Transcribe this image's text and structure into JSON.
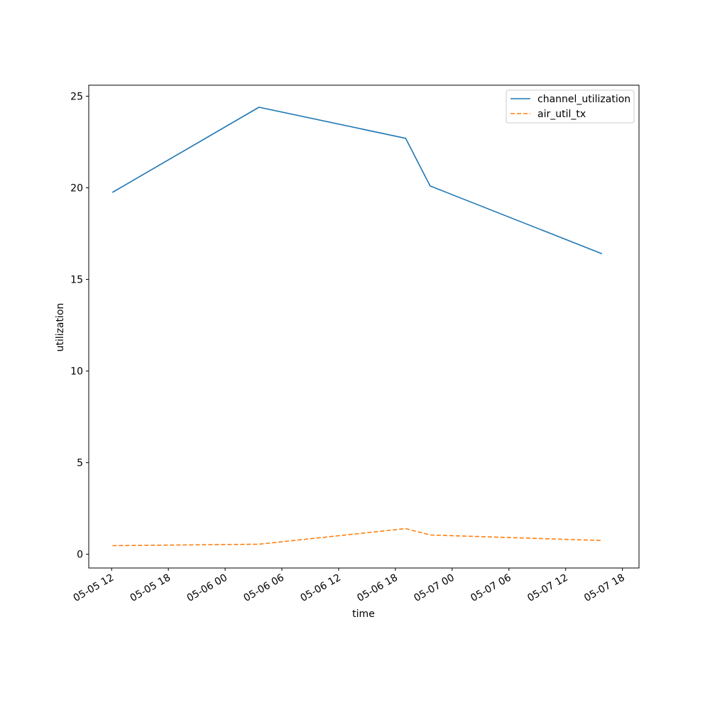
{
  "chart_data": {
    "type": "line",
    "title": "",
    "xlabel": "time",
    "ylabel": "utilization",
    "x_ticks": [
      "05-05 12",
      "05-05 18",
      "05-06 00",
      "05-06 06",
      "05-06 12",
      "05-06 18",
      "05-07 00",
      "05-07 06",
      "05-07 12",
      "05-07 18"
    ],
    "y_ticks": [
      "0",
      "5",
      "10",
      "15",
      "20",
      "25"
    ],
    "x_range": [
      "2024-05-05T09:35",
      "2024-05-07T19:45"
    ],
    "ylim": [
      -0.75,
      25.6
    ],
    "grid": false,
    "legend_position": "top-right",
    "series": [
      {
        "name": "channel_utilization",
        "color": "#1f77b4",
        "style": "solid",
        "x": [
          "2024-05-05T12:05",
          "2024-05-06T03:35",
          "2024-05-06T19:05",
          "2024-05-06T21:40",
          "2024-05-07T15:50"
        ],
        "values": [
          19.75,
          24.4,
          22.7,
          20.1,
          16.4
        ]
      },
      {
        "name": "air_util_tx",
        "color": "#ff7f0e",
        "style": "dashed",
        "x": [
          "2024-05-05T12:05",
          "2024-05-06T03:35",
          "2024-05-06T19:05",
          "2024-05-06T21:40",
          "2024-05-07T15:50"
        ],
        "values": [
          0.47,
          0.55,
          1.4,
          1.05,
          0.75
        ]
      }
    ]
  }
}
